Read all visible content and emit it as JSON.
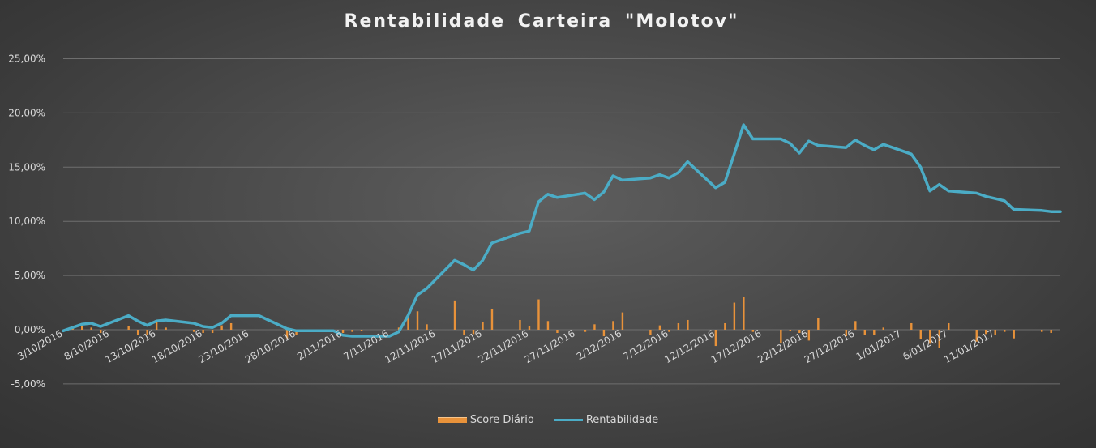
{
  "chart_data": {
    "type": "bar+line",
    "title": "Rentabilidade  Carteira  \"Molotov\"",
    "y_tick_labels": [
      "-5,00%",
      "0,00%",
      "5,00%",
      "10,00%",
      "15,00%",
      "20,00%",
      "25,00%"
    ],
    "ylim": [
      -5,
      25
    ],
    "x_tick_labels": [
      "3/10/2016",
      "8/10/2016",
      "13/10/2016",
      "18/10/2016",
      "23/10/2016",
      "28/10/2016",
      "2/11/2016",
      "7/11/2016",
      "12/11/2016",
      "17/11/2016",
      "22/11/2016",
      "27/11/2016",
      "2/12/2016",
      "7/12/2016",
      "12/12/2016",
      "17/12/2016",
      "22/12/2016",
      "27/12/2016",
      "1/01/2017",
      "6/01/2017",
      "11/01/2017"
    ],
    "x_range": [
      "3/10/2016",
      "18/01/2017"
    ],
    "grid": true,
    "legend_position": "bottom",
    "colors": {
      "bar": "#e8923a",
      "line": "#4bacc6"
    },
    "series": [
      {
        "name": "Score Diário",
        "type": "bar",
        "x": [
          "4/10/2016",
          "5/10/2016",
          "6/10/2016",
          "7/10/2016",
          "10/10/2016",
          "11/10/2016",
          "12/10/2016",
          "13/10/2016",
          "14/10/2016",
          "17/10/2016",
          "18/10/2016",
          "19/10/2016",
          "20/10/2016",
          "21/10/2016",
          "24/10/2016",
          "25/10/2016",
          "26/10/2016",
          "27/10/2016",
          "28/10/2016",
          "31/10/2016",
          "1/11/2016",
          "2/11/2016",
          "3/11/2016",
          "4/11/2016",
          "7/11/2016",
          "8/11/2016",
          "9/11/2016",
          "10/11/2016",
          "11/11/2016",
          "14/11/2016",
          "15/11/2016",
          "16/11/2016",
          "17/11/2016",
          "18/11/2016",
          "21/11/2016",
          "22/11/2016",
          "23/11/2016",
          "24/11/2016",
          "25/11/2016",
          "28/11/2016",
          "29/11/2016",
          "30/11/2016",
          "1/12/2016",
          "2/12/2016",
          "5/12/2016",
          "6/12/2016",
          "7/12/2016",
          "8/12/2016",
          "9/12/2016",
          "12/12/2016",
          "13/12/2016",
          "14/12/2016",
          "15/12/2016",
          "16/12/2016",
          "19/12/2016",
          "20/12/2016",
          "21/12/2016",
          "22/12/2016",
          "23/12/2016",
          "26/12/2016",
          "27/12/2016",
          "28/12/2016",
          "29/12/2016",
          "30/12/2016",
          "2/01/2017",
          "3/01/2017",
          "4/01/2017",
          "5/01/2017",
          "6/01/2017",
          "9/01/2017",
          "10/01/2017",
          "11/01/2017",
          "12/01/2017",
          "13/01/2017",
          "16/01/2017",
          "17/01/2017"
        ],
        "values": [
          0.3,
          0.3,
          0.2,
          -0.3,
          0.3,
          -0.5,
          -0.5,
          0.7,
          0.2,
          -0.2,
          -0.3,
          -0.3,
          0.4,
          0.6,
          0.0,
          0.0,
          0.0,
          -0.8,
          -0.5,
          0.0,
          0.0,
          -0.3,
          -0.2,
          -0.1,
          0.0,
          0.2,
          1.5,
          1.7,
          0.5,
          2.7,
          -0.5,
          -0.4,
          0.7,
          1.9,
          0.9,
          0.3,
          2.8,
          0.8,
          -0.3,
          -0.2,
          0.5,
          -0.6,
          0.8,
          1.6,
          -0.5,
          0.4,
          -0.2,
          0.6,
          0.9,
          -1.5,
          0.6,
          2.5,
          3.0,
          -0.2,
          -1.2,
          -0.1,
          -0.3,
          -1.0,
          1.1,
          -0.6,
          0.8,
          -0.5,
          -0.5,
          0.2,
          0.6,
          -0.9,
          -1.3,
          -1.7,
          0.6,
          -1.1,
          -0.4,
          -0.5,
          -0.2,
          -0.8,
          -0.2,
          -0.3
        ]
      },
      {
        "name": "Rentabilidade",
        "type": "line",
        "x": [
          "3/10/2016",
          "4/10/2016",
          "5/10/2016",
          "6/10/2016",
          "7/10/2016",
          "10/10/2016",
          "11/10/2016",
          "12/10/2016",
          "13/10/2016",
          "14/10/2016",
          "17/10/2016",
          "18/10/2016",
          "19/10/2016",
          "20/10/2016",
          "21/10/2016",
          "24/10/2016",
          "25/10/2016",
          "26/10/2016",
          "27/10/2016",
          "28/10/2016",
          "31/10/2016",
          "1/11/2016",
          "2/11/2016",
          "3/11/2016",
          "4/11/2016",
          "7/11/2016",
          "8/11/2016",
          "9/11/2016",
          "10/11/2016",
          "11/11/2016",
          "14/11/2016",
          "15/11/2016",
          "16/11/2016",
          "17/11/2016",
          "18/11/2016",
          "21/11/2016",
          "22/11/2016",
          "23/11/2016",
          "24/11/2016",
          "25/11/2016",
          "28/11/2016",
          "29/11/2016",
          "30/11/2016",
          "1/12/2016",
          "2/12/2016",
          "5/12/2016",
          "6/12/2016",
          "7/12/2016",
          "8/12/2016",
          "9/12/2016",
          "12/12/2016",
          "13/12/2016",
          "14/12/2016",
          "15/12/2016",
          "16/12/2016",
          "19/12/2016",
          "20/12/2016",
          "21/12/2016",
          "22/12/2016",
          "23/12/2016",
          "26/12/2016",
          "27/12/2016",
          "28/12/2016",
          "29/12/2016",
          "30/12/2016",
          "2/01/2017",
          "3/01/2017",
          "4/01/2017",
          "5/01/2017",
          "6/01/2017",
          "9/01/2017",
          "10/01/2017",
          "11/01/2017",
          "12/01/2017",
          "13/01/2017",
          "16/01/2017",
          "17/01/2017",
          "18/01/2017"
        ],
        "values": [
          -0.1,
          0.2,
          0.5,
          0.6,
          0.3,
          1.3,
          0.8,
          0.4,
          0.8,
          0.9,
          0.6,
          0.3,
          0.2,
          0.6,
          1.3,
          1.3,
          0.9,
          0.5,
          0.1,
          -0.1,
          -0.1,
          -0.1,
          -0.5,
          -0.6,
          -0.6,
          -0.6,
          -0.2,
          1.3,
          3.2,
          3.8,
          6.4,
          6.0,
          5.5,
          6.4,
          8.0,
          8.9,
          9.1,
          11.8,
          12.5,
          12.2,
          12.6,
          12.0,
          12.7,
          14.2,
          13.8,
          14.0,
          14.3,
          14.0,
          14.5,
          15.5,
          13.1,
          13.6,
          16.2,
          18.9,
          17.6,
          17.6,
          17.2,
          16.3,
          17.4,
          17.0,
          16.8,
          17.5,
          17.0,
          16.6,
          17.1,
          16.2,
          15.0,
          12.8,
          13.4,
          12.8,
          12.6,
          12.3,
          12.1,
          11.9,
          11.1,
          11.0,
          10.9,
          10.9
        ]
      }
    ]
  }
}
